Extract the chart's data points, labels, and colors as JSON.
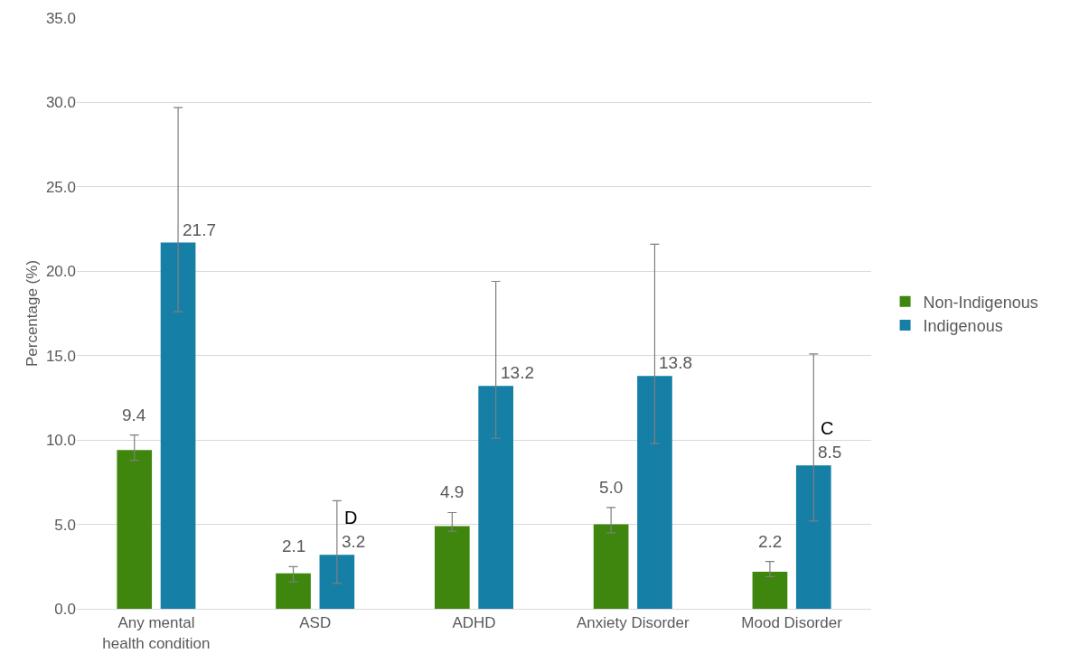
{
  "chart_data": {
    "type": "bar",
    "ylabel": "Percentage (%)",
    "categories": [
      "Any mental health condition",
      "ASD",
      "ADHD",
      "Anxiety Disorder",
      "Mood Disorder"
    ],
    "series": [
      {
        "name": "Non-Indigenous",
        "color": "#3f860f",
        "values": [
          9.4,
          2.1,
          4.9,
          5.0,
          2.2
        ],
        "errors": [
          [
            8.8,
            10.3
          ],
          [
            1.6,
            2.5
          ],
          [
            4.6,
            5.7
          ],
          [
            4.5,
            6.0
          ],
          [
            1.9,
            2.8
          ]
        ],
        "value_labels": [
          "9.4",
          "2.1",
          "4.9",
          "5.0",
          "2.2"
        ]
      },
      {
        "name": "Indigenous",
        "color": "#167fa6",
        "values": [
          21.7,
          3.2,
          13.2,
          13.8,
          8.5
        ],
        "errors": [
          [
            17.6,
            29.7
          ],
          [
            1.5,
            6.4
          ],
          [
            10.1,
            19.4
          ],
          [
            9.8,
            21.6
          ],
          [
            5.2,
            15.1
          ]
        ],
        "value_labels": [
          "21.7",
          "3.2",
          "13.2",
          "13.8",
          "8.5"
        ]
      }
    ],
    "annotations": [
      {
        "text": "D",
        "x": "ASD",
        "y": 3.2
      },
      {
        "text": "C",
        "x": "Mood Disorder",
        "y": 8.5
      }
    ],
    "ylim": [
      0,
      35
    ],
    "yticks": [
      {
        "value": 0,
        "label": "0.0"
      },
      {
        "value": 5,
        "label": "5.0"
      },
      {
        "value": 10,
        "label": "10.0"
      },
      {
        "value": 15,
        "label": "15.0"
      },
      {
        "value": 20,
        "label": "20.0"
      },
      {
        "value": 25,
        "label": "25.0"
      },
      {
        "value": 30,
        "label": "30.0"
      },
      {
        "value": 35,
        "label": "35.0"
      }
    ],
    "grid": "y",
    "legend": "right"
  }
}
